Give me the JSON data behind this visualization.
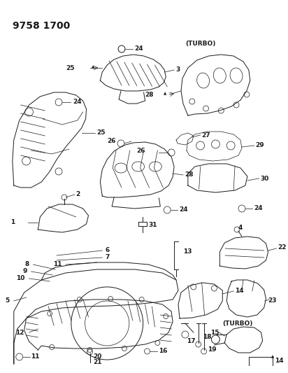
{
  "title": "9758 1700",
  "bg": "#ffffff",
  "figsize": [
    4.12,
    5.33
  ],
  "dpi": 100
}
